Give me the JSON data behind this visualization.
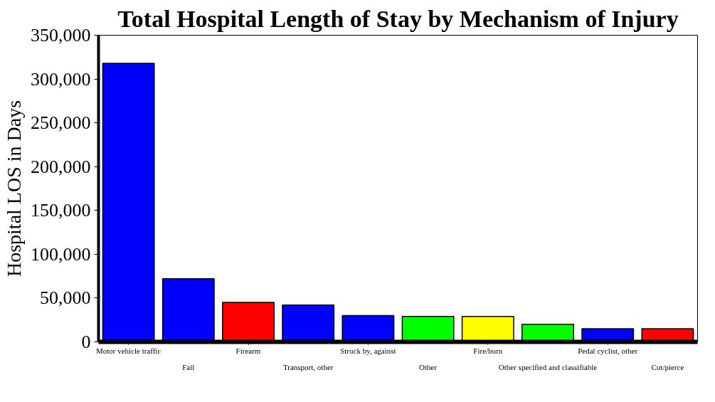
{
  "chart_data": {
    "type": "bar",
    "title": "Total Hospital Length of Stay by Mechanism of Injury",
    "ylabel": "Hospital LOS in Days",
    "categories": [
      "Motor vehicle traffic",
      "Fall",
      "Firearm",
      "Transport, other",
      "Struck by, against",
      "Other",
      "Fire/burn",
      "Other specified and classifiable",
      "Pedal cyclist, other",
      "Cut/pierce"
    ],
    "values": [
      318000,
      72000,
      45000,
      42000,
      30000,
      29000,
      29000,
      20000,
      15000,
      15000
    ],
    "colors": [
      "#0000ff",
      "#0000ff",
      "#ff0000",
      "#0000ff",
      "#0000ff",
      "#00ff00",
      "#ffff00",
      "#00ff00",
      "#0000ff",
      "#ff0000"
    ],
    "ylim": [
      0,
      350000
    ],
    "yticks": [
      {
        "value": 0,
        "label": "0"
      },
      {
        "value": 50000,
        "label": "50,000"
      },
      {
        "value": 100000,
        "label": "100,000"
      },
      {
        "value": 150000,
        "label": "150,000"
      },
      {
        "value": 200000,
        "label": "200,000"
      },
      {
        "value": 250000,
        "label": "250,000"
      },
      {
        "value": 300000,
        "label": "300,000"
      },
      {
        "value": 350000,
        "label": "350,000"
      }
    ],
    "grid": false
  }
}
